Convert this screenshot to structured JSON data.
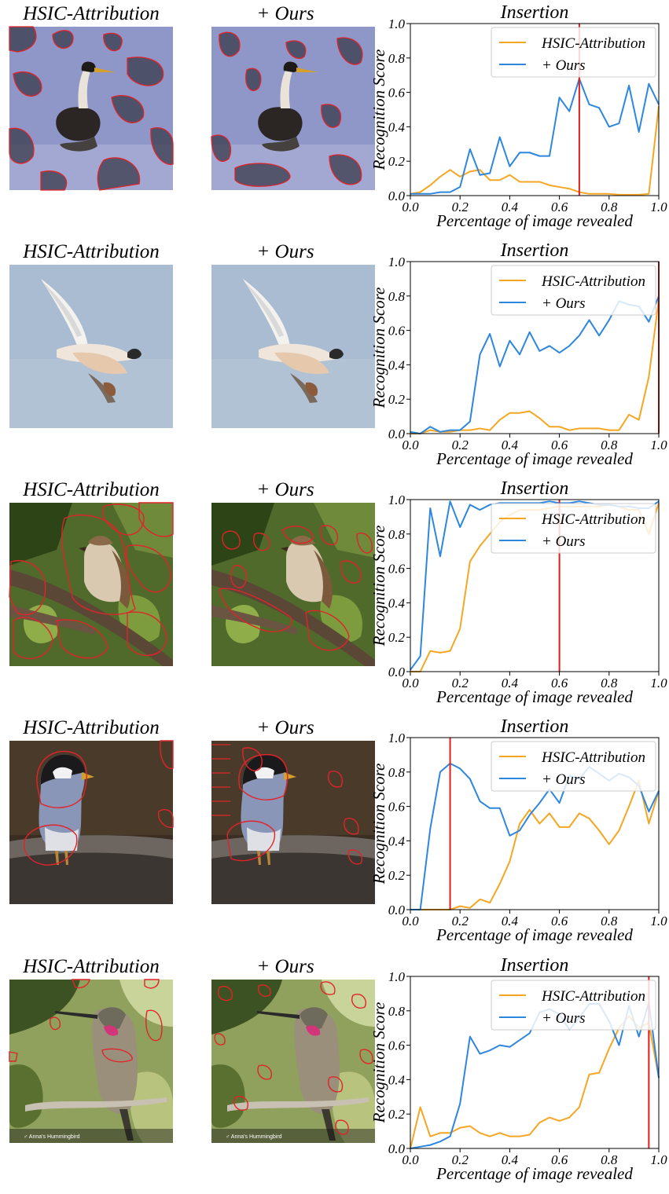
{
  "figure": {
    "rows": [
      {
        "scene": "grebe",
        "titles": {
          "left": "HSIC-Attribution",
          "right": "+ Ours"
        },
        "chart_data": {
          "type": "line",
          "title": "Insertion",
          "xlabel": "Percentage of image revealed",
          "ylabel": "Recognition Score",
          "xlim": [
            0.0,
            1.0
          ],
          "ylim": [
            0.0,
            1.0
          ],
          "xticks": [
            "0.0",
            "0.2",
            "0.4",
            "0.6",
            "0.8",
            "1.0"
          ],
          "yticks": [
            "0.0",
            "0.2",
            "0.4",
            "0.6",
            "0.8",
            "1.0"
          ],
          "legend_position": "top-right",
          "vline": 0.68,
          "x": [
            0.0,
            0.04,
            0.08,
            0.12,
            0.16,
            0.2,
            0.24,
            0.28,
            0.32,
            0.36,
            0.4,
            0.44,
            0.48,
            0.52,
            0.56,
            0.6,
            0.64,
            0.68,
            0.72,
            0.76,
            0.8,
            0.84,
            0.88,
            0.92,
            0.96,
            1.0
          ],
          "series": [
            {
              "name": "HSIC-Attribution",
              "color": "#f5a623",
              "values": [
                0.01,
                0.02,
                0.06,
                0.11,
                0.15,
                0.11,
                0.14,
                0.15,
                0.09,
                0.09,
                0.12,
                0.08,
                0.08,
                0.08,
                0.06,
                0.05,
                0.04,
                0.02,
                0.01,
                0.01,
                0.01,
                0.005,
                0.005,
                0.005,
                0.01,
                0.52
              ]
            },
            {
              "name": "+ Ours",
              "color": "#2e86de",
              "values": [
                0.01,
                0.01,
                0.01,
                0.02,
                0.02,
                0.05,
                0.27,
                0.12,
                0.13,
                0.34,
                0.17,
                0.25,
                0.25,
                0.23,
                0.23,
                0.57,
                0.49,
                0.68,
                0.53,
                0.51,
                0.4,
                0.42,
                0.64,
                0.37,
                0.65,
                0.53
              ]
            }
          ]
        }
      },
      {
        "scene": "tern",
        "titles": {
          "left": "HSIC-Attribution",
          "right": "+ Ours"
        },
        "chart_data": {
          "type": "line",
          "title": "Insertion",
          "xlabel": "Percentage of image revealed",
          "ylabel": "Recognition Score",
          "xlim": [
            0.0,
            1.0
          ],
          "ylim": [
            0.0,
            1.0
          ],
          "xticks": [
            "0.0",
            "0.2",
            "0.4",
            "0.6",
            "0.8",
            "1.0"
          ],
          "yticks": [
            "0.0",
            "0.2",
            "0.4",
            "0.6",
            "0.8",
            "1.0"
          ],
          "legend_position": "top-right",
          "vline": 1.0,
          "x": [
            0.0,
            0.04,
            0.08,
            0.12,
            0.16,
            0.2,
            0.24,
            0.28,
            0.32,
            0.36,
            0.4,
            0.44,
            0.48,
            0.52,
            0.56,
            0.6,
            0.64,
            0.68,
            0.72,
            0.76,
            0.8,
            0.84,
            0.88,
            0.92,
            0.96,
            1.0
          ],
          "series": [
            {
              "name": "HSIC-Attribution",
              "color": "#f5a623",
              "values": [
                0.0,
                0.0,
                0.02,
                0.01,
                0.01,
                0.02,
                0.02,
                0.03,
                0.02,
                0.08,
                0.12,
                0.12,
                0.13,
                0.09,
                0.04,
                0.04,
                0.02,
                0.03,
                0.03,
                0.03,
                0.02,
                0.02,
                0.11,
                0.08,
                0.33,
                0.78
              ]
            },
            {
              "name": "+ Ours",
              "color": "#2e86de",
              "values": [
                0.01,
                0.0,
                0.04,
                0.01,
                0.02,
                0.02,
                0.07,
                0.46,
                0.58,
                0.39,
                0.54,
                0.46,
                0.59,
                0.48,
                0.51,
                0.47,
                0.51,
                0.57,
                0.66,
                0.57,
                0.66,
                0.77,
                0.75,
                0.74,
                0.65,
                0.8
              ]
            }
          ]
        }
      },
      {
        "scene": "nightingale",
        "titles": {
          "left": "HSIC-Attribution",
          "right": "+ Ours"
        },
        "chart_data": {
          "type": "line",
          "title": "Insertion",
          "xlabel": "Percentage of image revealed",
          "ylabel": "Recognition Score",
          "xlim": [
            0.0,
            1.0
          ],
          "ylim": [
            0.0,
            1.0
          ],
          "xticks": [
            "0.0",
            "0.2",
            "0.4",
            "0.6",
            "0.8",
            "1.0"
          ],
          "yticks": [
            "0.0",
            "0.2",
            "0.4",
            "0.6",
            "0.8",
            "1.0"
          ],
          "legend_position": "top-right",
          "vline": 0.6,
          "x": [
            0.0,
            0.04,
            0.08,
            0.12,
            0.16,
            0.2,
            0.24,
            0.28,
            0.32,
            0.36,
            0.4,
            0.44,
            0.48,
            0.52,
            0.56,
            0.6,
            0.64,
            0.68,
            0.72,
            0.76,
            0.8,
            0.84,
            0.88,
            0.92,
            0.96,
            1.0
          ],
          "series": [
            {
              "name": "HSIC-Attribution",
              "color": "#f5a623",
              "values": [
                0.0,
                0.0,
                0.12,
                0.11,
                0.12,
                0.25,
                0.64,
                0.73,
                0.8,
                0.87,
                0.91,
                0.94,
                0.94,
                0.94,
                0.95,
                0.96,
                0.96,
                0.96,
                0.96,
                0.96,
                0.97,
                0.96,
                0.94,
                0.94,
                0.8,
                0.98
              ]
            },
            {
              "name": "+ Ours",
              "color": "#2e86de",
              "values": [
                0.01,
                0.09,
                0.95,
                0.67,
                0.99,
                0.84,
                0.97,
                0.94,
                0.97,
                0.98,
                0.98,
                0.98,
                0.98,
                0.98,
                0.99,
                0.98,
                0.98,
                0.99,
                0.98,
                0.97,
                0.97,
                0.96,
                0.96,
                0.95,
                0.95,
                0.99
              ]
            }
          ]
        }
      },
      {
        "scene": "bush-tit",
        "titles": {
          "left": "HSIC-Attribution",
          "right": "+ Ours"
        },
        "chart_data": {
          "type": "line",
          "title": "Insertion",
          "xlabel": "Percentage of image revealed",
          "ylabel": "Recognition Score",
          "xlim": [
            0.0,
            1.0
          ],
          "ylim": [
            0.0,
            1.0
          ],
          "xticks": [
            "0.0",
            "0.2",
            "0.4",
            "0.6",
            "0.8",
            "1.0"
          ],
          "yticks": [
            "0.0",
            "0.2",
            "0.4",
            "0.6",
            "0.8",
            "1.0"
          ],
          "legend_position": "top-right",
          "vline": 0.16,
          "x": [
            0.0,
            0.04,
            0.08,
            0.12,
            0.16,
            0.2,
            0.24,
            0.28,
            0.32,
            0.36,
            0.4,
            0.44,
            0.48,
            0.52,
            0.56,
            0.6,
            0.64,
            0.68,
            0.72,
            0.76,
            0.8,
            0.84,
            0.88,
            0.92,
            0.96,
            1.0
          ],
          "series": [
            {
              "name": "HSIC-Attribution",
              "color": "#f5a623",
              "values": [
                0.0,
                0.0,
                0.0,
                0.0,
                0.0,
                0.02,
                0.01,
                0.06,
                0.04,
                0.15,
                0.28,
                0.5,
                0.58,
                0.5,
                0.56,
                0.48,
                0.48,
                0.56,
                0.53,
                0.46,
                0.38,
                0.46,
                0.6,
                0.75,
                0.5,
                0.69
              ]
            },
            {
              "name": "+ Ours",
              "color": "#2e86de",
              "values": [
                0.0,
                0.0,
                0.47,
                0.8,
                0.85,
                0.82,
                0.76,
                0.63,
                0.59,
                0.59,
                0.43,
                0.46,
                0.55,
                0.62,
                0.7,
                0.62,
                0.78,
                0.76,
                0.83,
                0.79,
                0.75,
                0.79,
                0.77,
                0.72,
                0.57,
                0.69
              ]
            }
          ]
        }
      },
      {
        "scene": "hummingbird",
        "titles": {
          "left": "HSIC-Attribution",
          "right": "+ Ours"
        },
        "photo_caption": "♂ Anna's Hummingbird",
        "chart_data": {
          "type": "line",
          "title": "Insertion",
          "xlabel": "Percentage of image revealed",
          "ylabel": "Recognition Score",
          "xlim": [
            0.0,
            1.0
          ],
          "ylim": [
            0.0,
            1.0
          ],
          "xticks": [
            "0.0",
            "0.2",
            "0.4",
            "0.6",
            "0.8",
            "1.0"
          ],
          "yticks": [
            "0.0",
            "0.2",
            "0.4",
            "0.6",
            "0.8",
            "1.0"
          ],
          "legend_position": "top-right",
          "vline": 0.96,
          "x": [
            0.0,
            0.04,
            0.08,
            0.12,
            0.16,
            0.2,
            0.24,
            0.28,
            0.32,
            0.36,
            0.4,
            0.44,
            0.48,
            0.52,
            0.56,
            0.6,
            0.64,
            0.68,
            0.72,
            0.76,
            0.8,
            0.84,
            0.88,
            0.92,
            0.96,
            1.0
          ],
          "series": [
            {
              "name": "HSIC-Attribution",
              "color": "#f5a623",
              "values": [
                0.0,
                0.24,
                0.07,
                0.09,
                0.09,
                0.12,
                0.13,
                0.09,
                0.07,
                0.09,
                0.07,
                0.07,
                0.08,
                0.15,
                0.18,
                0.16,
                0.18,
                0.24,
                0.43,
                0.44,
                0.58,
                0.7,
                0.77,
                0.7,
                0.73,
                0.41
              ]
            },
            {
              "name": "+ Ours",
              "color": "#2e86de",
              "values": [
                0.0,
                0.01,
                0.02,
                0.04,
                0.07,
                0.26,
                0.65,
                0.55,
                0.57,
                0.6,
                0.59,
                0.63,
                0.67,
                0.79,
                0.81,
                0.78,
                0.69,
                0.76,
                0.84,
                0.84,
                0.74,
                0.6,
                0.83,
                0.65,
                0.85,
                0.41
              ]
            }
          ]
        }
      }
    ]
  }
}
